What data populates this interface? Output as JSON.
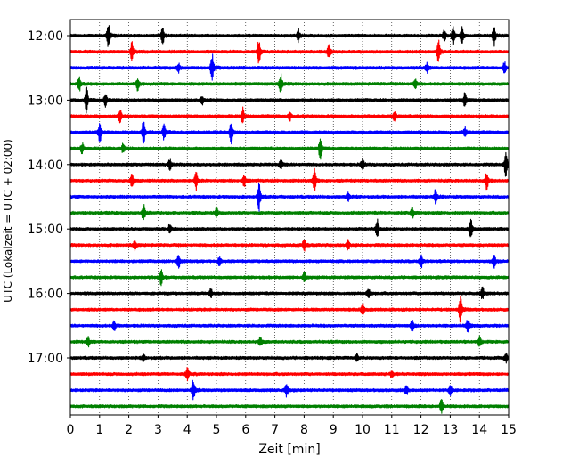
{
  "chart_data": {
    "type": "line",
    "title": "",
    "xlabel": "Zeit  [min]",
    "ylabel": "UTC (Lokalzeit = UTC + 02:00)",
    "xlim": [
      0,
      15
    ],
    "x_ticks": [
      "0",
      "1",
      "2",
      "3",
      "4",
      "5",
      "6",
      "7",
      "8",
      "9",
      "10",
      "11",
      "12",
      "13",
      "14",
      "15"
    ],
    "y_ticks": [
      "12:00",
      "13:00",
      "14:00",
      "15:00",
      "16:00",
      "17:00"
    ],
    "y_tick_rows": [
      0,
      4,
      8,
      12,
      16,
      20
    ],
    "grid_x": true,
    "trace_interval_min": 15,
    "traces": [
      {
        "start": "12:00",
        "color": "#000000",
        "events": [
          [
            1.3,
            0.9
          ],
          [
            3.15,
            0.6
          ],
          [
            7.8,
            0.4
          ],
          [
            12.8,
            0.4
          ],
          [
            13.1,
            0.6
          ],
          [
            13.4,
            0.5
          ],
          [
            14.5,
            0.6
          ]
        ]
      },
      {
        "start": "12:15",
        "color": "#ff0000",
        "events": [
          [
            2.1,
            0.6
          ],
          [
            6.45,
            0.8
          ],
          [
            8.85,
            0.5
          ],
          [
            12.6,
            0.7
          ]
        ]
      },
      {
        "start": "12:30",
        "color": "#0000ff",
        "events": [
          [
            3.7,
            0.3
          ],
          [
            4.85,
            0.9
          ],
          [
            12.2,
            0.3
          ],
          [
            14.85,
            0.4
          ]
        ]
      },
      {
        "start": "12:45",
        "color": "#008000",
        "events": [
          [
            0.3,
            0.5
          ],
          [
            2.3,
            0.4
          ],
          [
            7.2,
            0.6
          ],
          [
            11.8,
            0.3
          ]
        ]
      },
      {
        "start": "13:00",
        "color": "#000000",
        "events": [
          [
            0.55,
            0.9
          ],
          [
            1.2,
            0.4
          ],
          [
            4.5,
            0.3
          ],
          [
            13.5,
            0.5
          ]
        ]
      },
      {
        "start": "13:15",
        "color": "#ff0000",
        "events": [
          [
            1.7,
            0.4
          ],
          [
            5.9,
            0.5
          ],
          [
            7.5,
            0.3
          ],
          [
            11.1,
            0.4
          ]
        ]
      },
      {
        "start": "13:30",
        "color": "#0000ff",
        "events": [
          [
            1.0,
            0.7
          ],
          [
            2.5,
            0.8
          ],
          [
            3.2,
            0.5
          ],
          [
            5.5,
            0.7
          ],
          [
            13.5,
            0.3
          ]
        ]
      },
      {
        "start": "13:45",
        "color": "#008000",
        "events": [
          [
            0.4,
            0.3
          ],
          [
            1.8,
            0.3
          ],
          [
            8.55,
            0.7
          ]
        ]
      },
      {
        "start": "14:00",
        "color": "#000000",
        "events": [
          [
            3.4,
            0.3
          ],
          [
            7.2,
            0.3
          ],
          [
            10.0,
            0.4
          ],
          [
            14.9,
            0.8
          ]
        ]
      },
      {
        "start": "14:15",
        "color": "#ff0000",
        "events": [
          [
            2.1,
            0.4
          ],
          [
            4.3,
            0.6
          ],
          [
            5.95,
            0.4
          ],
          [
            8.35,
            0.8
          ],
          [
            14.25,
            0.6
          ]
        ]
      },
      {
        "start": "14:30",
        "color": "#0000ff",
        "events": [
          [
            6.45,
            0.9
          ],
          [
            9.5,
            0.3
          ],
          [
            12.5,
            0.5
          ]
        ]
      },
      {
        "start": "14:45",
        "color": "#008000",
        "events": [
          [
            2.5,
            0.6
          ],
          [
            5.0,
            0.3
          ],
          [
            11.7,
            0.3
          ]
        ]
      },
      {
        "start": "15:00",
        "color": "#000000",
        "events": [
          [
            3.4,
            0.3
          ],
          [
            10.5,
            0.6
          ],
          [
            13.7,
            0.7
          ]
        ]
      },
      {
        "start": "15:15",
        "color": "#ff0000",
        "events": [
          [
            2.2,
            0.3
          ],
          [
            8.0,
            0.4
          ],
          [
            9.5,
            0.3
          ]
        ]
      },
      {
        "start": "15:30",
        "color": "#0000ff",
        "events": [
          [
            3.7,
            0.5
          ],
          [
            5.1,
            0.3
          ],
          [
            12.0,
            0.5
          ],
          [
            14.5,
            0.5
          ]
        ]
      },
      {
        "start": "15:45",
        "color": "#008000",
        "events": [
          [
            3.1,
            0.5
          ],
          [
            8.0,
            0.3
          ]
        ]
      },
      {
        "start": "16:00",
        "color": "#000000",
        "events": [
          [
            4.8,
            0.3
          ],
          [
            10.2,
            0.3
          ],
          [
            14.1,
            0.4
          ]
        ]
      },
      {
        "start": "16:15",
        "color": "#ff0000",
        "events": [
          [
            10.0,
            0.4
          ],
          [
            13.35,
            0.9
          ]
        ]
      },
      {
        "start": "16:30",
        "color": "#0000ff",
        "events": [
          [
            1.5,
            0.3
          ],
          [
            11.7,
            0.4
          ],
          [
            13.6,
            0.5
          ]
        ]
      },
      {
        "start": "16:45",
        "color": "#008000",
        "events": [
          [
            0.6,
            0.3
          ],
          [
            6.5,
            0.3
          ],
          [
            14.0,
            0.3
          ]
        ]
      },
      {
        "start": "17:00",
        "color": "#000000",
        "events": [
          [
            2.5,
            0.2
          ],
          [
            9.8,
            0.2
          ],
          [
            14.9,
            0.3
          ]
        ]
      },
      {
        "start": "17:15",
        "color": "#ff0000",
        "events": [
          [
            4.0,
            0.4
          ],
          [
            11.0,
            0.2
          ]
        ]
      },
      {
        "start": "17:30",
        "color": "#0000ff",
        "events": [
          [
            4.2,
            0.8
          ],
          [
            7.4,
            0.4
          ],
          [
            11.5,
            0.3
          ],
          [
            13.0,
            0.3
          ]
        ]
      },
      {
        "start": "17:45",
        "color": "#008000",
        "events": [
          [
            12.7,
            0.5
          ]
        ]
      }
    ]
  }
}
